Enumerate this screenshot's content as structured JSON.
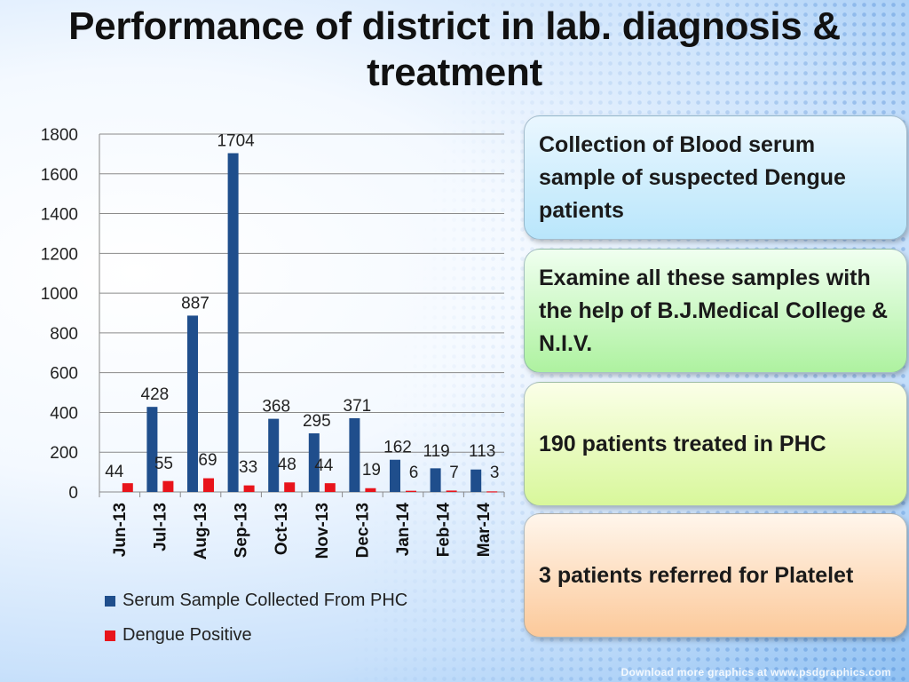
{
  "slide": {
    "title": "Performance of district in lab. diagnosis & treatment"
  },
  "chart_data": {
    "type": "bar",
    "title": "",
    "xlabel": "",
    "ylabel": "",
    "categories": [
      "Jun-13",
      "Jul-13",
      "Aug-13",
      "Sep-13",
      "Oct-13",
      "Nov-13",
      "Dec-13",
      "Jan-14",
      "Feb-14",
      "Mar-14"
    ],
    "series": [
      {
        "name": "Serum Sample Collected From PHC",
        "color": "#1f4e8c",
        "values": [
          0,
          428,
          887,
          1704,
          368,
          295,
          371,
          162,
          119,
          113
        ]
      },
      {
        "name": "Dengue Positive",
        "color": "#e8141b",
        "values": [
          44,
          55,
          69,
          33,
          48,
          44,
          19,
          6,
          7,
          3
        ]
      }
    ],
    "data_labels": [
      "44",
      "55",
      "69",
      "33",
      "48",
      "44",
      "19",
      "6",
      "7",
      "3",
      "428",
      "887",
      "1704",
      "368",
      "295",
      "371",
      "162",
      "119",
      "113"
    ],
    "y_ticks": [
      "1800",
      "1600",
      "1400",
      "1200",
      "1000",
      "800",
      "600",
      "400",
      "200",
      "0"
    ],
    "ylim": [
      0,
      1800
    ],
    "grid": true,
    "legend_position": "bottom"
  },
  "boxes": [
    {
      "text": "Collection of Blood serum sample of suspected Dengue patients",
      "color": "#b9e6fb"
    },
    {
      "text": "Examine all these samples with the help of B.J.Medical College & N.I.V.",
      "color": "#aef2a0"
    },
    {
      "text": "190 patients treated in PHC",
      "color": "#d8f79b"
    },
    {
      "text": "3 patients referred for Platelet",
      "color": "#fcc99a"
    }
  ],
  "watermark": "Download more graphics at www.psdgraphics.com"
}
